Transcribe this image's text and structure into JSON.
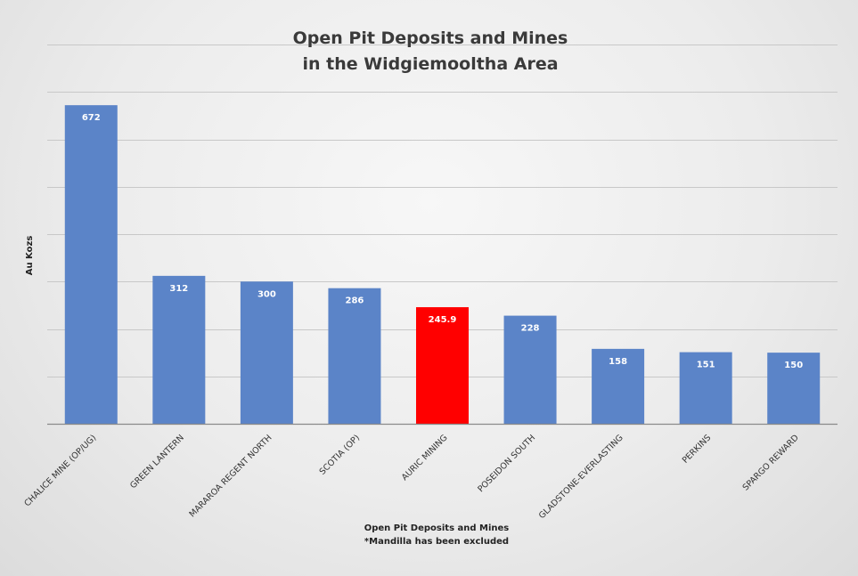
{
  "chart_data": {
    "type": "bar",
    "title_lines": [
      "Open Pit Deposits and Mines",
      "in the Widgiemooltha Area"
    ],
    "ylabel": "Au Kozs",
    "xlabel_lines": [
      "Open Pit Deposits and Mines",
      "*Mandilla has been excluded"
    ],
    "categories": [
      "CHALICE MINE (OP/UG)",
      "GREEN LANTERN",
      "MARAROA REGENT NORTH",
      "SCOTIA (OP)",
      "AURIC MINING",
      "POSEIDON SOUTH",
      "GLADSTONE-EVERLASTING",
      "PERKINS",
      "SPARGO REWARD"
    ],
    "values": [
      672,
      312,
      300,
      286,
      245.9,
      228,
      158,
      151,
      150
    ],
    "value_labels": [
      "672",
      "312",
      "300",
      "286",
      "245.9",
      "228",
      "158",
      "151",
      "150"
    ],
    "colors": [
      "#5b84c8",
      "#5b84c8",
      "#5b84c8",
      "#5b84c8",
      "#ff0000",
      "#5b84c8",
      "#5b84c8",
      "#5b84c8",
      "#5b84c8"
    ],
    "ylim": [
      0,
      800
    ],
    "y_grid_step": 100,
    "grid": true,
    "legend": "none"
  }
}
